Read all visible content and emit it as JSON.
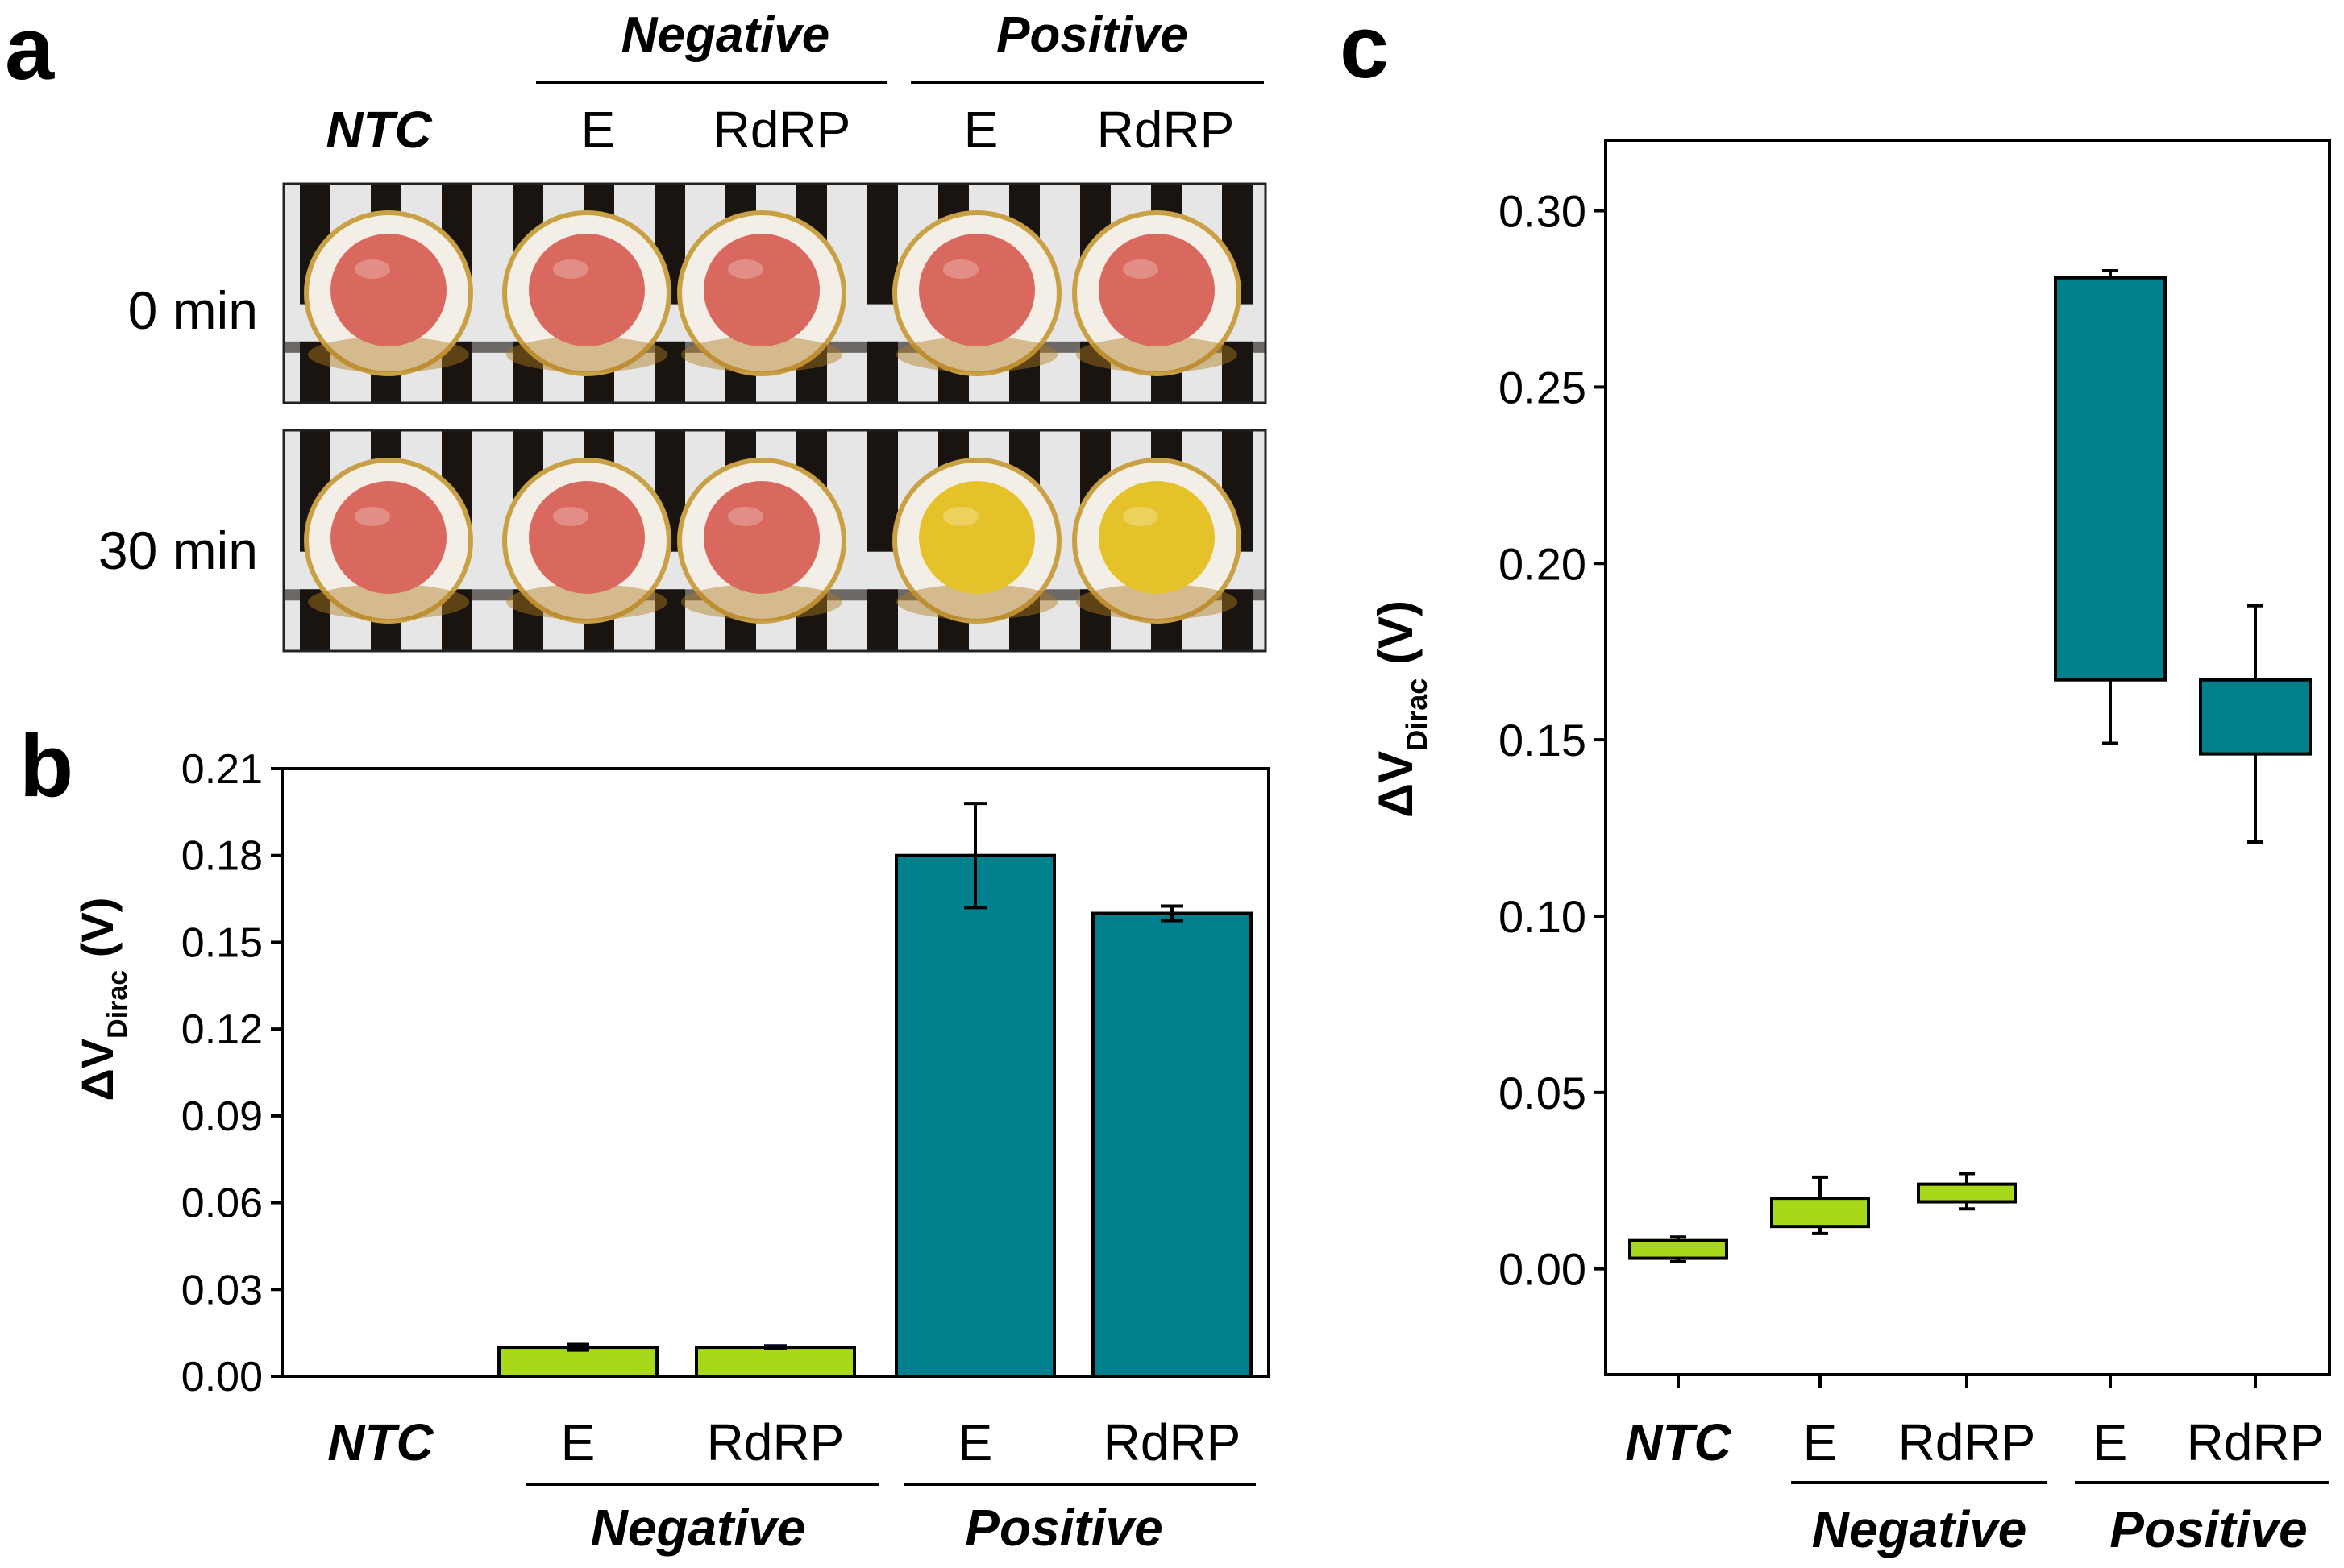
{
  "panel_letters": {
    "a": "a",
    "b": "b",
    "c": "c"
  },
  "groups": {
    "ntc": "NTC",
    "negative": "Negative",
    "positive": "Positive"
  },
  "targets": {
    "e": "E",
    "rdrp": "RdRP"
  },
  "panel_a": {
    "rows": [
      {
        "label": "0 min",
        "wells": [
          "pink",
          "pink",
          "pink",
          "pink",
          "pink"
        ]
      },
      {
        "label": "30 min",
        "wells": [
          "pink",
          "pink",
          "pink",
          "yellow",
          "yellow"
        ]
      }
    ]
  },
  "colors": {
    "negative": "#a8d81a",
    "positive": "#007f8c",
    "pink": "#d9695f",
    "yellow": "#e6c22a",
    "rack": "#1a1410",
    "fabric": "#e6e6e6"
  },
  "chart_data": [
    {
      "id": "b",
      "type": "bar",
      "title": "",
      "ylabel": "ΔV",
      "ylabel_sub": "Dirac",
      "ylabel_unit": "(V)",
      "ylim": [
        0,
        0.21
      ],
      "yticks": [
        "0.00",
        "0.03",
        "0.06",
        "0.09",
        "0.12",
        "0.15",
        "0.18",
        "0.21"
      ],
      "categories": [
        "NTC",
        "E",
        "RdRP",
        "E",
        "RdRP"
      ],
      "groups": [
        "ntc",
        "negative",
        "negative",
        "positive",
        "positive"
      ],
      "values": [
        0.0,
        0.01,
        0.01,
        0.18,
        0.16
      ],
      "errors": [
        0.0,
        0.001,
        0.0005,
        0.018,
        0.0025
      ]
    },
    {
      "id": "c",
      "type": "box",
      "title": "",
      "ylabel": "ΔV",
      "ylabel_sub": "Dirac",
      "ylabel_unit": "(V)",
      "ylim": [
        -0.03,
        0.32
      ],
      "yticks": [
        "0.00",
        "0.05",
        "0.10",
        "0.15",
        "0.20",
        "0.25",
        "0.30"
      ],
      "categories": [
        "NTC",
        "E",
        "RdRP",
        "E",
        "RdRP"
      ],
      "groups": [
        "ntc",
        "negative",
        "negative",
        "positive",
        "positive"
      ],
      "boxes": [
        {
          "q1": 0.003,
          "q3": 0.008,
          "whisker_low": 0.002,
          "whisker_high": 0.009
        },
        {
          "q1": 0.012,
          "q3": 0.02,
          "whisker_low": 0.01,
          "whisker_high": 0.026
        },
        {
          "q1": 0.019,
          "q3": 0.024,
          "whisker_low": 0.017,
          "whisker_high": 0.027
        },
        {
          "q1": 0.167,
          "q3": 0.281,
          "whisker_low": 0.149,
          "whisker_high": 0.283
        },
        {
          "q1": 0.146,
          "q3": 0.167,
          "whisker_low": 0.121,
          "whisker_high": 0.188
        }
      ]
    }
  ]
}
